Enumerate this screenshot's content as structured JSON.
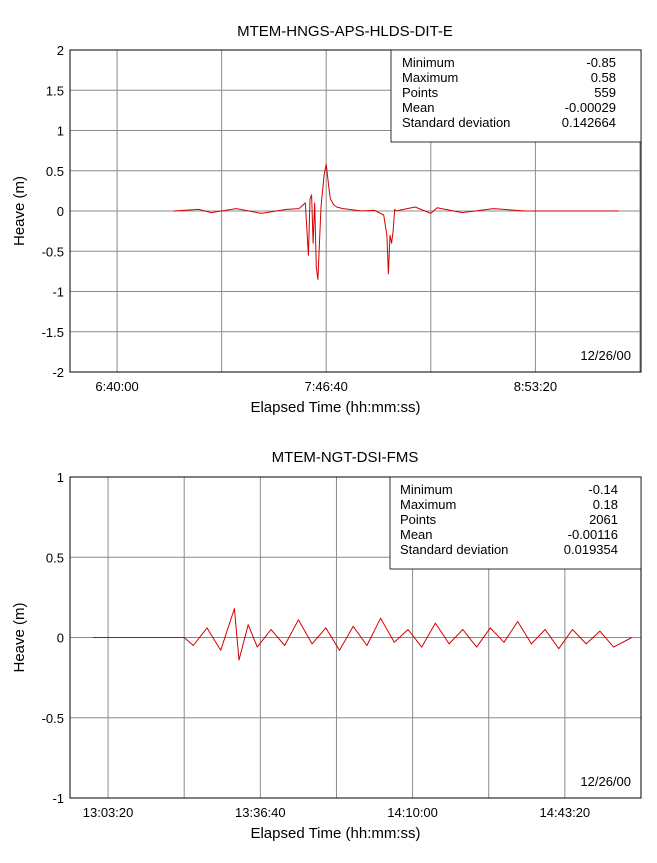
{
  "chart_data": [
    {
      "type": "line",
      "title": "MTEM-HNGS-APS-HLDS-DIT-E",
      "xlabel": "Elapsed Time (hh:mm:ss)",
      "ylabel": "Heave (m)",
      "ylim": [
        -2,
        2
      ],
      "yticks": [
        "2",
        "1.5",
        "1",
        "0.5",
        "0",
        "-0.5",
        "-1",
        "-1.5",
        "-2"
      ],
      "xticks": [
        "6:40:00",
        "7:46:40",
        "8:53:20"
      ],
      "date_label": "12/26/00",
      "grid": true,
      "stats": {
        "labels": [
          "Minimum",
          "Maximum",
          "Points",
          "Mean",
          "Standard deviation"
        ],
        "values": [
          "-0.85",
          "0.58",
          "559",
          "-0.00029",
          "0.142664"
        ]
      },
      "series": [
        {
          "color": "#d40000",
          "x": [
            "6:58:00",
            "7:06:00",
            "7:10:00",
            "7:18:00",
            "7:26:00",
            "7:34:00",
            "7:38:00",
            "7:40:00",
            "7:41:00",
            "7:41:30",
            "7:42:00",
            "7:42:30",
            "7:43:00",
            "7:43:30",
            "7:44:00",
            "7:45:00",
            "7:46:00",
            "7:46:40",
            "7:47:30",
            "7:48:00",
            "7:49:00",
            "7:50:00",
            "7:52:00",
            "7:54:00",
            "7:58:00",
            "8:02:00",
            "8:05:00",
            "8:06:00",
            "8:06:30",
            "8:07:00",
            "8:07:30",
            "8:08:00",
            "8:08:30",
            "8:09:00",
            "8:10:00",
            "8:15:00",
            "8:20:00",
            "8:22:00",
            "8:30:00",
            "8:40:00",
            "8:50:00",
            "9:00:00",
            "9:20:00"
          ],
          "y": [
            0,
            0.02,
            -0.02,
            0.03,
            -0.03,
            0.02,
            0.03,
            0.1,
            -0.55,
            0.15,
            0.2,
            -0.4,
            0.1,
            -0.7,
            -0.85,
            0.05,
            0.45,
            0.58,
            0.3,
            0.15,
            0.08,
            0.05,
            0.03,
            0.02,
            0,
            0.01,
            -0.05,
            -0.3,
            -0.78,
            -0.3,
            -0.4,
            -0.25,
            0.02,
            0,
            0.01,
            0.05,
            -0.03,
            0.04,
            -0.02,
            0.03,
            0,
            0,
            0
          ]
        }
      ]
    },
    {
      "type": "line",
      "title": "MTEM-NGT-DSI-FMS",
      "xlabel": "Elapsed Time (hh:mm:ss)",
      "ylabel": "Heave (m)",
      "ylim": [
        -1,
        1
      ],
      "yticks": [
        "1",
        "0.5",
        "0",
        "-0.5",
        "-1"
      ],
      "xticks": [
        "13:03:20",
        "13:36:40",
        "14:10:00",
        "14:43:20"
      ],
      "date_label": "12/26/00",
      "grid": true,
      "stats": {
        "labels": [
          "Minimum",
          "Maximum",
          "Points",
          "Mean",
          "Standard deviation"
        ],
        "values": [
          "-0.14",
          "0.18",
          "2061",
          "-0.00116",
          "0.019354"
        ]
      },
      "series": [
        {
          "color": "#d40000",
          "x": [
            "13:00:00",
            "13:20:00",
            "13:22:00",
            "13:25:00",
            "13:28:00",
            "13:31:00",
            "13:32:00",
            "13:34:00",
            "13:36:00",
            "13:39:00",
            "13:42:00",
            "13:45:00",
            "13:48:00",
            "13:51:00",
            "13:54:00",
            "13:57:00",
            "14:00:00",
            "14:03:00",
            "14:06:00",
            "14:09:00",
            "14:12:00",
            "14:15:00",
            "14:18:00",
            "14:21:00",
            "14:24:00",
            "14:27:00",
            "14:30:00",
            "14:33:00",
            "14:36:00",
            "14:39:00",
            "14:42:00",
            "14:45:00",
            "14:48:00",
            "14:51:00",
            "14:54:00",
            "14:58:00"
          ],
          "y": [
            0,
            0,
            -0.05,
            0.06,
            -0.08,
            0.18,
            -0.14,
            0.08,
            -0.06,
            0.05,
            -0.05,
            0.11,
            -0.04,
            0.06,
            -0.08,
            0.07,
            -0.05,
            0.12,
            -0.03,
            0.05,
            -0.06,
            0.09,
            -0.04,
            0.05,
            -0.06,
            0.06,
            -0.03,
            0.1,
            -0.04,
            0.05,
            -0.07,
            0.05,
            -0.04,
            0.04,
            -0.06,
            0
          ]
        }
      ]
    }
  ]
}
